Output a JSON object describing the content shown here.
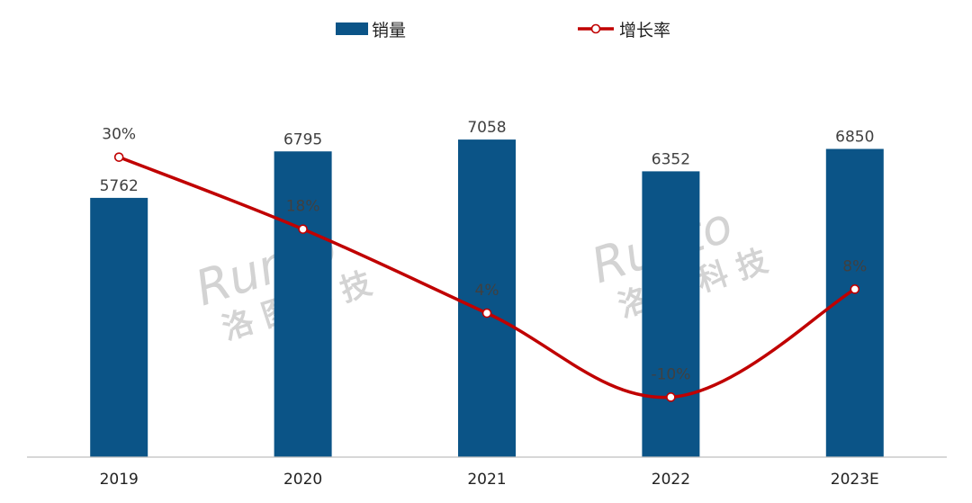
{
  "legend": {
    "bar_label": "销量",
    "line_label": "增长率"
  },
  "watermark": {
    "latin": "Runto",
    "cjk": "洛 图 科 技"
  },
  "colors": {
    "bar": "#0b5487",
    "line": "#c00000",
    "axis": "#bfbfbf",
    "label": "#404040",
    "watermark": "#d3d3d3"
  },
  "chart_data": {
    "type": "bar",
    "categories": [
      "2019",
      "2020",
      "2021",
      "2022",
      "2023E"
    ],
    "series": [
      {
        "name": "销量",
        "type": "bar",
        "values": [
          5762,
          6795,
          7058,
          6352,
          6850
        ]
      },
      {
        "name": "增长率",
        "type": "line",
        "values": [
          30,
          18,
          4,
          -10,
          8
        ],
        "value_labels": [
          "30%",
          "18%",
          "4%",
          "-10%",
          "8%"
        ]
      }
    ],
    "ylim": [
      0,
      10000
    ],
    "y2lim": [
      -20,
      55
    ],
    "grid": false,
    "legend_position": "top-center"
  }
}
